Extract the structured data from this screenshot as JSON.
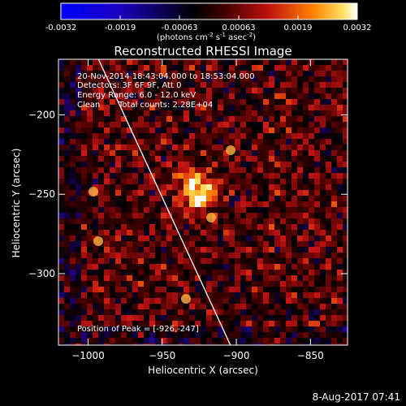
{
  "colorbar": {
    "ticks": [
      "-0.0032",
      "-0.0019",
      "-0.00063",
      "0.00063",
      "0.0019",
      "0.0032"
    ],
    "units_prefix": "(photons cm",
    "units_exp1": "-2",
    "units_mid": " s",
    "units_exp2": "-1",
    "units_mid2": " asec",
    "units_exp3": "-2",
    "units_suffix": ")"
  },
  "chart_data": {
    "type": "heatmap",
    "title": "Reconstructed RHESSI Image",
    "xlabel": "Heliocentric X (arcsec)",
    "ylabel": "Heliocentric Y (arcsec)",
    "xlim": [
      -1020,
      -825
    ],
    "ylim": [
      -345,
      -165
    ],
    "xticks": [
      -1000,
      -950,
      -900,
      -850
    ],
    "yticks": [
      -200,
      -250,
      -300
    ],
    "colorbar_range": [
      -0.0032,
      0.0032
    ],
    "colormap": "blue-black-red-yellow-white",
    "peak": {
      "x": -926,
      "y": -247
    },
    "limb_line": [
      [
        -993,
        -165
      ],
      [
        -904,
        -345
      ]
    ],
    "annotations": {
      "time": "20-Nov-2014 18:43:04.000 to 18:53:04.000",
      "detectors": "Detectors: 3F 6F 9F, Att 0",
      "energy": "Energy Range: 6.0 - 12.0 keV",
      "clean": "Clean",
      "counts": "Total counts: 2.28E+04",
      "peak_text": "Position of Peak = [-926,-247]"
    },
    "footer_date": "8-Aug-2017 07:41"
  }
}
